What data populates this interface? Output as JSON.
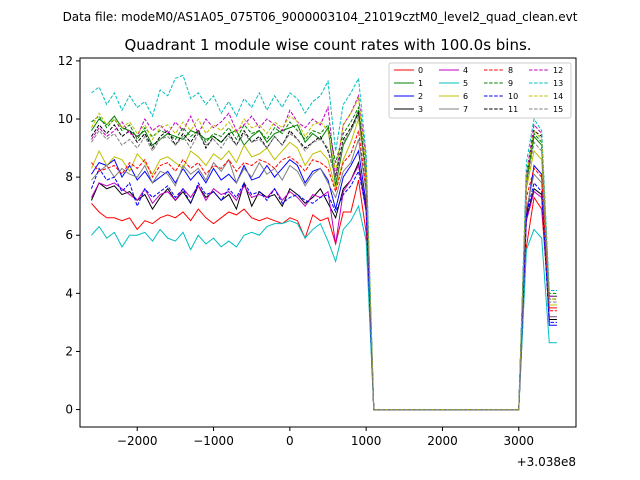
{
  "suptitle": "Data file: modeM0/AS1A05_075T06_9000003104_21019cztM0_level2_quad_clean.evt",
  "chart_data": {
    "type": "line",
    "title": "Quadrant 1 module wise count rates with 100.0s bins.",
    "xlabel": "",
    "ylabel": "",
    "x_offset_label": "+3.038e8",
    "xlim": [
      -2750,
      3750
    ],
    "ylim": [
      -0.6,
      12.1
    ],
    "x_ticks": [
      -2000,
      -1000,
      0,
      1000,
      2000,
      3000
    ],
    "x_tick_labels": [
      "−2000",
      "−1000",
      "0",
      "1000",
      "2000",
      "3000"
    ],
    "y_ticks": [
      0,
      2,
      4,
      6,
      8,
      10,
      12
    ],
    "y_tick_labels": [
      "0",
      "2",
      "4",
      "6",
      "8",
      "10",
      "12"
    ],
    "legend_position": "top-right",
    "x": [
      -2600,
      -2500,
      -2400,
      -2300,
      -2200,
      -2100,
      -2000,
      -1900,
      -1800,
      -1700,
      -1600,
      -1500,
      -1400,
      -1300,
      -1200,
      -1100,
      -1000,
      -900,
      -800,
      -700,
      -600,
      -500,
      -400,
      -300,
      -200,
      -100,
      0,
      100,
      200,
      300,
      400,
      500,
      600,
      700,
      800,
      900,
      1000,
      1100,
      1200,
      1300,
      1400,
      1500,
      1600,
      1700,
      1800,
      1900,
      2000,
      2100,
      2200,
      2300,
      2400,
      2500,
      2600,
      2700,
      2800,
      2900,
      3000,
      3100,
      3200,
      3300,
      3400,
      3500
    ],
    "series": [
      {
        "name": "0",
        "color": "#ff0000",
        "dash": false,
        "values": [
          7.1,
          6.8,
          6.6,
          6.6,
          6.5,
          6.6,
          6.2,
          6.5,
          6.4,
          6.6,
          6.7,
          6.6,
          6.8,
          6.5,
          6.9,
          6.6,
          6.4,
          6.6,
          6.8,
          6.7,
          6.9,
          6.6,
          6.5,
          6.6,
          6.5,
          6.4,
          6.6,
          6.5,
          5.9,
          6.7,
          6.5,
          6.6,
          5.7,
          6.8,
          6.8,
          7.9,
          6.1,
          0.0,
          0,
          0,
          0,
          0,
          0,
          0,
          0,
          0,
          0,
          0,
          0,
          0,
          0,
          0,
          0,
          0,
          0,
          0,
          0.0,
          5.6,
          7.3,
          6.9,
          3.5,
          3.5
        ]
      },
      {
        "name": "1",
        "color": "#008000",
        "dash": false,
        "values": [
          9.6,
          10.0,
          9.8,
          10.1,
          9.7,
          9.6,
          9.4,
          9.6,
          9.1,
          9.3,
          9.5,
          9.4,
          9.3,
          9.6,
          9.5,
          9.3,
          9.4,
          9.2,
          9.5,
          9.6,
          9.1,
          9.4,
          9.6,
          9.2,
          9.5,
          9.6,
          9.7,
          9.8,
          9.2,
          9.5,
          9.3,
          9.7,
          7.7,
          9.1,
          9.6,
          10.3,
          7.9,
          0.0,
          0,
          0,
          0,
          0,
          0,
          0,
          0,
          0,
          0,
          0,
          0,
          0,
          0,
          0,
          0,
          0,
          0,
          0,
          0.0,
          7.8,
          9.4,
          9.1,
          3.9,
          3.9
        ]
      },
      {
        "name": "2",
        "color": "#0000ff",
        "dash": false,
        "values": [
          8.1,
          8.5,
          8.4,
          8.6,
          8.0,
          8.4,
          7.9,
          8.2,
          7.8,
          8.0,
          8.2,
          7.8,
          8.3,
          7.9,
          8.2,
          7.8,
          8.3,
          7.9,
          8.1,
          7.8,
          8.4,
          7.9,
          8.0,
          8.4,
          8.0,
          8.3,
          8.6,
          8.4,
          7.8,
          8.2,
          8.3,
          7.9,
          6.9,
          8.0,
          8.4,
          8.9,
          7.1,
          0.0,
          0,
          0,
          0,
          0,
          0,
          0,
          0,
          0,
          0,
          0,
          0,
          0,
          0,
          0,
          0,
          0,
          0,
          0,
          0.0,
          6.7,
          8.4,
          8.1,
          2.9,
          2.9
        ]
      },
      {
        "name": "3",
        "color": "#000000",
        "dash": false,
        "values": [
          7.2,
          7.8,
          7.6,
          7.7,
          7.4,
          7.5,
          7.2,
          7.4,
          6.9,
          7.3,
          7.6,
          7.2,
          7.5,
          7.1,
          7.7,
          7.3,
          7.5,
          7.2,
          7.4,
          6.9,
          7.8,
          7.0,
          7.5,
          7.3,
          7.4,
          7.0,
          7.6,
          7.4,
          7.1,
          7.3,
          7.6,
          7.1,
          6.6,
          7.6,
          7.9,
          8.5,
          6.9,
          0.0,
          0,
          0,
          0,
          0,
          0,
          0,
          0,
          0,
          0,
          0,
          0,
          0,
          0,
          0,
          0,
          0,
          0,
          0,
          0.0,
          6.6,
          7.6,
          7.4,
          3.1,
          3.1
        ]
      },
      {
        "name": "4",
        "color": "#bf00bf",
        "dash": false,
        "values": [
          7.3,
          7.8,
          7.7,
          7.8,
          7.6,
          7.4,
          7.2,
          7.6,
          7.1,
          7.4,
          7.5,
          7.2,
          7.6,
          7.3,
          7.7,
          7.2,
          7.6,
          7.4,
          7.5,
          7.2,
          7.7,
          7.3,
          7.4,
          7.3,
          7.6,
          7.2,
          7.5,
          7.3,
          7.0,
          7.4,
          7.3,
          7.5,
          5.7,
          7.5,
          7.9,
          8.4,
          6.8,
          0.0,
          0,
          0,
          0,
          0,
          0,
          0,
          0,
          0,
          0,
          0,
          0,
          0,
          0,
          0,
          0,
          0,
          0,
          0,
          0.0,
          6.5,
          7.5,
          7.3,
          3.2,
          3.2
        ]
      },
      {
        "name": "5",
        "color": "#00bfbf",
        "dash": false,
        "values": [
          6.0,
          6.3,
          5.9,
          6.1,
          5.6,
          6.0,
          6.0,
          6.1,
          5.8,
          6.2,
          5.9,
          5.8,
          6.1,
          5.5,
          6.0,
          5.7,
          5.9,
          5.6,
          5.8,
          5.6,
          6.0,
          6.1,
          6.0,
          6.3,
          6.4,
          6.4,
          6.5,
          6.4,
          5.9,
          6.2,
          6.4,
          5.8,
          5.1,
          6.2,
          6.5,
          7.0,
          5.8,
          0.0,
          0,
          0,
          0,
          0,
          0,
          0,
          0,
          0,
          0,
          0,
          0,
          0,
          0,
          0,
          0,
          0,
          0,
          0,
          0.0,
          5.5,
          6.2,
          5.9,
          2.3,
          2.3
        ]
      },
      {
        "name": "6",
        "color": "#bfbf00",
        "dash": false,
        "values": [
          8.3,
          8.9,
          8.4,
          8.7,
          8.6,
          8.2,
          8.8,
          8.5,
          8.1,
          8.6,
          8.7,
          8.5,
          8.3,
          8.9,
          8.7,
          8.4,
          8.8,
          8.6,
          8.9,
          8.5,
          9.1,
          8.7,
          8.8,
          9.0,
          8.6,
          8.9,
          9.2,
          9.0,
          8.4,
          8.8,
          8.9,
          8.6,
          7.6,
          8.6,
          9.2,
          10.0,
          8.0,
          0.0,
          0,
          0,
          0,
          0,
          0,
          0,
          0,
          0,
          0,
          0,
          0,
          0,
          0,
          0,
          0,
          0,
          0,
          0,
          0.0,
          7.6,
          8.9,
          8.6,
          3.6,
          3.6
        ]
      },
      {
        "name": "7",
        "color": "#808080",
        "dash": false,
        "values": [
          7.9,
          8.2,
          8.4,
          8.0,
          8.3,
          8.1,
          8.0,
          8.4,
          7.8,
          8.2,
          8.1,
          7.7,
          8.4,
          8.1,
          8.3,
          7.9,
          8.5,
          8.2,
          8.6,
          7.8,
          8.3,
          8.0,
          8.5,
          8.1,
          8.3,
          7.9,
          8.4,
          8.2,
          7.7,
          8.1,
          8.3,
          7.8,
          7.3,
          8.2,
          8.5,
          9.3,
          7.5,
          0.0,
          0,
          0,
          0,
          0,
          0,
          0,
          0,
          0,
          0,
          0,
          0,
          0,
          0,
          0,
          0,
          0,
          0,
          0,
          0.0,
          6.9,
          8.1,
          7.8,
          3.2,
          3.2
        ]
      },
      {
        "name": "8",
        "color": "#ff0000",
        "dash": true,
        "values": [
          8.5,
          8.2,
          8.3,
          8.4,
          8.1,
          8.5,
          8.3,
          8.6,
          8.0,
          8.4,
          8.5,
          8.2,
          8.6,
          8.3,
          8.5,
          8.1,
          8.4,
          8.3,
          8.6,
          8.2,
          8.5,
          8.4,
          8.6,
          8.5,
          8.3,
          8.6,
          8.7,
          8.5,
          8.2,
          8.6,
          8.5,
          8.3,
          7.5,
          8.5,
          8.8,
          9.6,
          7.6,
          0.0,
          0,
          0,
          0,
          0,
          0,
          0,
          0,
          0,
          0,
          0,
          0,
          0,
          0,
          0,
          0,
          0,
          0,
          0,
          0.0,
          7.3,
          8.3,
          8.0,
          3.4,
          3.4
        ]
      },
      {
        "name": "9",
        "color": "#008000",
        "dash": true,
        "values": [
          9.9,
          10.1,
          9.7,
          10.0,
          9.6,
          9.8,
          9.3,
          9.7,
          9.4,
          9.6,
          9.5,
          9.3,
          9.7,
          9.4,
          9.6,
          9.2,
          9.5,
          9.4,
          9.7,
          9.3,
          9.8,
          9.5,
          9.6,
          9.3,
          9.7,
          9.5,
          9.9,
          9.6,
          9.3,
          9.6,
          9.5,
          9.8,
          8.5,
          9.5,
          9.9,
          10.4,
          8.2,
          0.0,
          0,
          0,
          0,
          0,
          0,
          0,
          0,
          0,
          0,
          0,
          0,
          0,
          0,
          0,
          0,
          0,
          0,
          0,
          0.0,
          8.0,
          9.5,
          9.2,
          4.0,
          4.0
        ]
      },
      {
        "name": "10",
        "color": "#0000ff",
        "dash": true,
        "values": [
          7.6,
          8.3,
          7.9,
          8.0,
          7.5,
          7.8,
          7.0,
          7.6,
          7.3,
          7.5,
          7.7,
          7.3,
          7.6,
          7.1,
          7.8,
          7.4,
          7.5,
          7.2,
          7.6,
          7.3,
          7.8,
          7.4,
          7.5,
          7.2,
          7.6,
          7.1,
          7.3,
          7.4,
          7.2,
          7.1,
          7.3,
          7.4,
          6.8,
          7.4,
          7.7,
          8.2,
          6.9,
          0.0,
          0,
          0,
          0,
          0,
          0,
          0,
          0,
          0,
          0,
          0,
          0,
          0,
          0,
          0,
          0,
          0,
          0,
          0,
          0.0,
          6.7,
          7.8,
          7.5,
          3.0,
          3.0
        ]
      },
      {
        "name": "11",
        "color": "#000000",
        "dash": true,
        "values": [
          9.4,
          9.8,
          9.5,
          9.8,
          9.4,
          9.6,
          9.2,
          9.5,
          9.0,
          9.4,
          9.6,
          9.1,
          9.5,
          9.2,
          9.6,
          9.0,
          9.4,
          9.2,
          9.5,
          9.1,
          9.6,
          9.2,
          9.4,
          9.0,
          9.4,
          9.1,
          9.6,
          9.3,
          9.0,
          9.2,
          9.4,
          8.9,
          8.0,
          9.3,
          9.7,
          10.2,
          8.0,
          0.0,
          0,
          0,
          0,
          0,
          0,
          0,
          0,
          0,
          0,
          0,
          0,
          0,
          0,
          0,
          0,
          0,
          0,
          0,
          0.0,
          8.0,
          9.6,
          9.4,
          3.8,
          3.8
        ]
      },
      {
        "name": "12",
        "color": "#bf00bf",
        "dash": true,
        "values": [
          9.3,
          9.7,
          9.4,
          9.6,
          9.9,
          9.5,
          9.4,
          10.0,
          9.6,
          9.8,
          9.5,
          9.9,
          9.6,
          10.1,
          9.5,
          10.0,
          9.7,
          9.9,
          10.2,
          9.6,
          9.8,
          10.1,
          9.7,
          10.0,
          9.8,
          9.6,
          10.3,
          9.9,
          9.7,
          10.0,
          9.8,
          10.4,
          8.0,
          9.8,
          10.2,
          10.8,
          8.6,
          0.0,
          0,
          0,
          0,
          0,
          0,
          0,
          0,
          0,
          0,
          0,
          0,
          0,
          0,
          0,
          0,
          0,
          0,
          0,
          0.0,
          8.1,
          9.8,
          9.5,
          3.9,
          3.9
        ]
      },
      {
        "name": "13",
        "color": "#00bfbf",
        "dash": true,
        "values": [
          10.9,
          11.1,
          10.5,
          10.9,
          10.3,
          10.8,
          10.4,
          10.6,
          10.1,
          11.0,
          10.8,
          11.4,
          11.5,
          10.7,
          10.9,
          10.5,
          10.8,
          10.2,
          10.6,
          10.1,
          10.7,
          10.4,
          10.9,
          10.3,
          10.8,
          10.4,
          10.9,
          10.7,
          10.2,
          10.6,
          10.8,
          11.3,
          8.9,
          10.5,
          10.9,
          11.4,
          8.8,
          0.0,
          0,
          0,
          0,
          0,
          0,
          0,
          0,
          0,
          0,
          0,
          0,
          0,
          0,
          0,
          0,
          0,
          0,
          0,
          0.0,
          8.5,
          10.0,
          9.6,
          4.1,
          4.1
        ]
      },
      {
        "name": "14",
        "color": "#bfbf00",
        "dash": true,
        "values": [
          9.7,
          10.2,
          9.8,
          10.0,
          9.7,
          9.9,
          9.5,
          9.8,
          9.3,
          9.7,
          9.8,
          9.5,
          9.9,
          9.6,
          10.0,
          9.5,
          9.8,
          9.6,
          9.9,
          9.5,
          10.0,
          9.7,
          9.8,
          9.5,
          9.9,
          9.7,
          10.1,
          9.9,
          9.4,
          9.8,
          9.9,
          9.6,
          8.2,
          9.8,
          10.2,
          10.7,
          8.4,
          0.0,
          0,
          0,
          0,
          0,
          0,
          0,
          0,
          0,
          0,
          0,
          0,
          0,
          0,
          0,
          0,
          0,
          0,
          0,
          0.0,
          8.0,
          9.6,
          9.3,
          3.8,
          3.8
        ]
      },
      {
        "name": "15",
        "color": "#808080",
        "dash": true,
        "values": [
          9.2,
          9.6,
          9.3,
          9.5,
          9.1,
          9.3,
          9.0,
          9.4,
          8.9,
          9.3,
          9.4,
          9.1,
          9.4,
          9.0,
          9.5,
          9.1,
          9.3,
          9.0,
          9.4,
          9.1,
          9.5,
          9.2,
          9.3,
          9.0,
          9.4,
          9.1,
          9.5,
          9.3,
          8.9,
          9.2,
          9.3,
          9.0,
          7.9,
          9.2,
          9.6,
          10.1,
          7.9,
          0.0,
          0,
          0,
          0,
          0,
          0,
          0,
          0,
          0,
          0,
          0,
          0,
          0,
          0,
          0,
          0,
          0,
          0,
          0,
          0.0,
          7.7,
          9.2,
          8.9,
          3.7,
          3.7
        ]
      }
    ]
  }
}
